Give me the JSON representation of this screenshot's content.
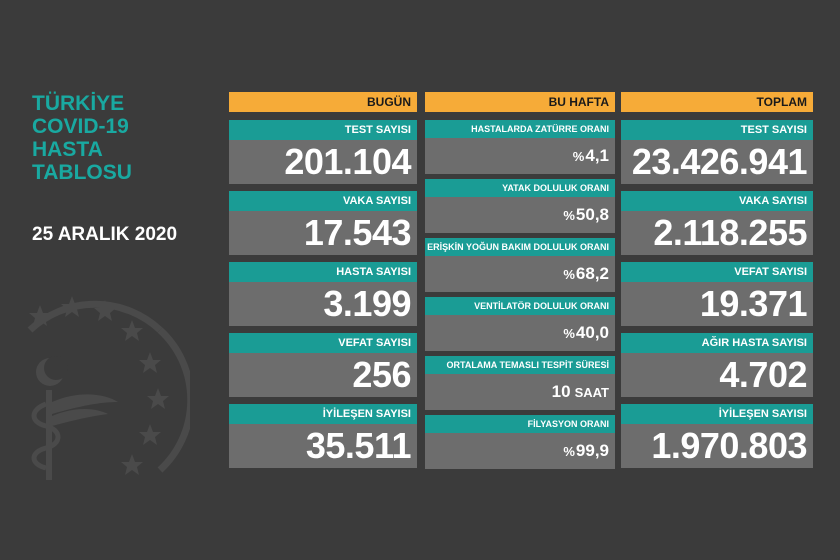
{
  "title_lines": [
    "TÜRKİYE",
    "COVID-19",
    "HASTA",
    "TABLOSU"
  ],
  "date": "25 ARALIK 2020",
  "headers": {
    "today": "BUGÜN",
    "week": "BU HAFTA",
    "total": "TOPLAM"
  },
  "today": [
    {
      "label": "TEST SAYISI",
      "value": "201.104"
    },
    {
      "label": "VAKA SAYISI",
      "value": "17.543"
    },
    {
      "label": "HASTA SAYISI",
      "value": "3.199"
    },
    {
      "label": "VEFAT SAYISI",
      "value": "256"
    },
    {
      "label": "İYİLEŞEN SAYISI",
      "value": "35.511"
    }
  ],
  "week": [
    {
      "label": "HASTALARDA ZATÜRRE ORANI",
      "prefix": "%",
      "value": "4,1",
      "suffix": ""
    },
    {
      "label": "YATAK DOLULUK ORANI",
      "prefix": "%",
      "value": "50,8",
      "suffix": ""
    },
    {
      "label": "ERİŞKİN YOĞUN BAKIM DOLULUK ORANI",
      "prefix": "%",
      "value": "68,2",
      "suffix": ""
    },
    {
      "label": "VENTİLATÖR DOLULUK ORANI",
      "prefix": "%",
      "value": "40,0",
      "suffix": ""
    },
    {
      "label": "ORTALAMA TEMASLI TESPİT SÜRESİ",
      "prefix": "",
      "value": "10",
      "suffix": "SAAT"
    },
    {
      "label": "FİLYASYON ORANI",
      "prefix": "%",
      "value": "99,9",
      "suffix": ""
    }
  ],
  "total": [
    {
      "label": "TEST SAYISI",
      "value": "23.426.941"
    },
    {
      "label": "VAKA SAYISI",
      "value": "2.118.255"
    },
    {
      "label": "VEFAT SAYISI",
      "value": "19.371"
    },
    {
      "label": "AĞIR HASTA SAYISI",
      "value": "4.702"
    },
    {
      "label": "İYİLEŞEN SAYISI",
      "value": "1.970.803"
    }
  ],
  "colors": {
    "background": "#3b3b3b",
    "header": "#f6ab38",
    "label_bar": "#1a9c95",
    "value_box": "#6d6d6d",
    "title": "#19a9a1"
  },
  "emblem_icon": "ministry-of-health-emblem-icon"
}
